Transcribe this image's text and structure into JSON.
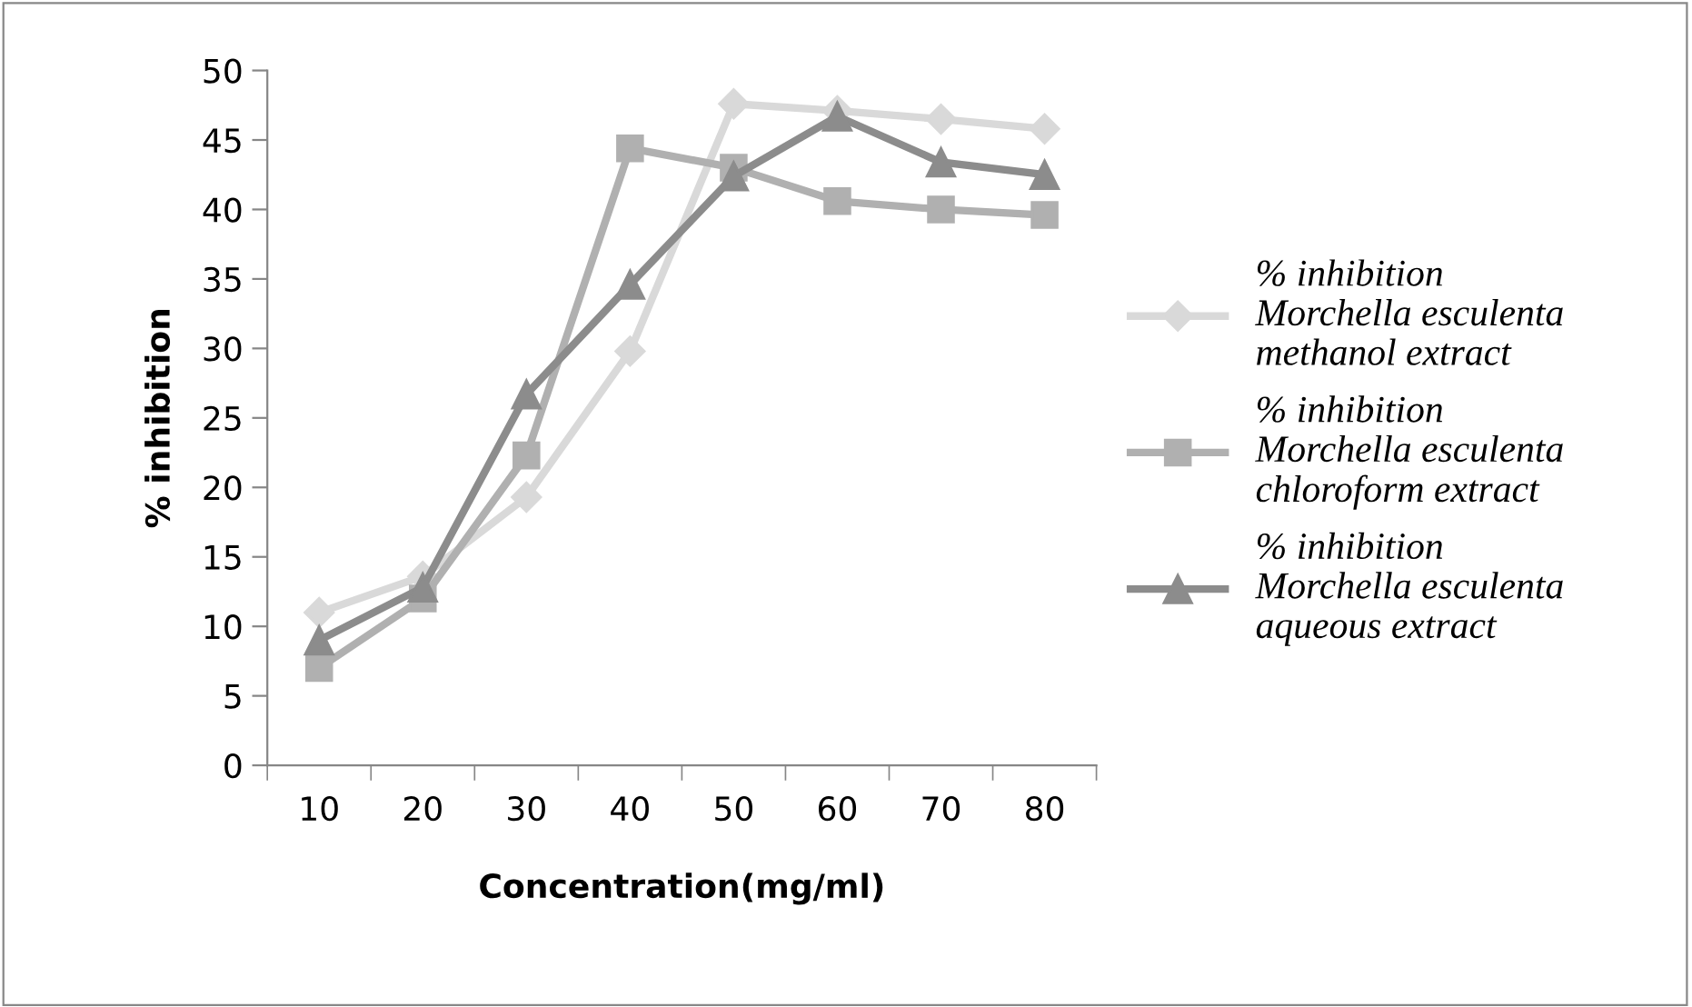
{
  "chart_data": {
    "type": "line",
    "xlabel": "Concentration(mg/ml)",
    "ylabel": "% inhibition",
    "categories": [
      "10",
      "20",
      "30",
      "40",
      "50",
      "60",
      "70",
      "80"
    ],
    "series": [
      {
        "name": "% inhibition Morchella esculenta methanol extract",
        "color": "#d9d9d9",
        "marker": "diamond",
        "values": [
          11.0,
          13.6,
          19.3,
          29.8,
          47.6,
          47.1,
          46.5,
          45.8
        ]
      },
      {
        "name": "% inhibition Morchella esculenta chloroform extract",
        "color": "#b0b0b0",
        "marker": "square",
        "values": [
          7.0,
          12.0,
          22.3,
          44.4,
          43.0,
          40.6,
          40.0,
          39.6
        ]
      },
      {
        "name": "% inhibition Morchella esculenta aqueous extract",
        "color": "#8c8c8c",
        "marker": "triangle",
        "values": [
          9.0,
          12.8,
          26.7,
          34.6,
          42.4,
          46.7,
          43.4,
          42.5
        ]
      }
    ],
    "ylim": [
      0,
      50
    ],
    "yticks": [
      0,
      5,
      10,
      15,
      20,
      25,
      30,
      35,
      40,
      45,
      50
    ],
    "grid": false,
    "legend": "right",
    "line_style": "solid"
  }
}
